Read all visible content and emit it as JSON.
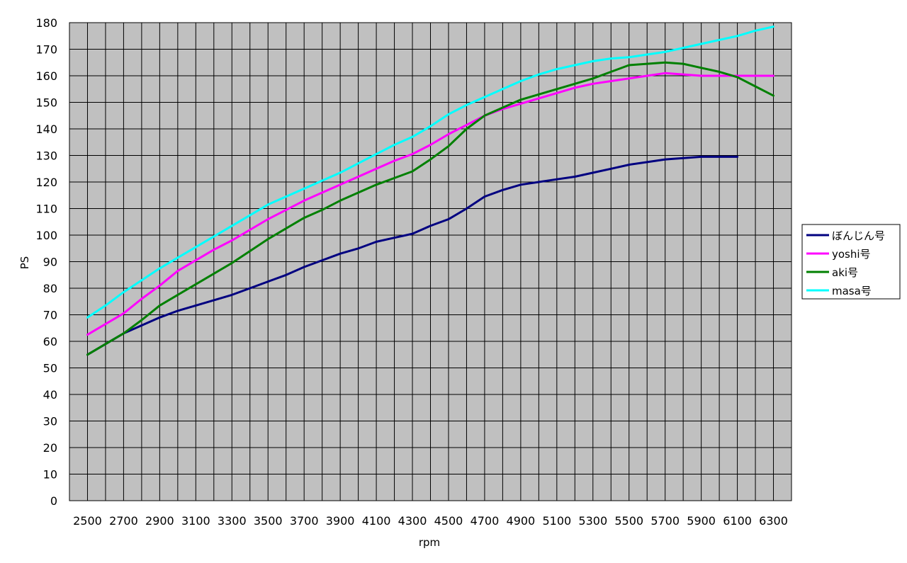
{
  "chart_data": {
    "type": "line",
    "title": "",
    "xlabel": "rpm",
    "ylabel": "PS",
    "ylim": [
      0,
      180
    ],
    "y_ticks": [
      0,
      10,
      20,
      30,
      40,
      50,
      60,
      70,
      80,
      90,
      100,
      110,
      120,
      130,
      140,
      150,
      160,
      170,
      180
    ],
    "x_tick_labels": [
      "2500",
      "2700",
      "2900",
      "3100",
      "3300",
      "3500",
      "3700",
      "3900",
      "4100",
      "4300",
      "4500",
      "4700",
      "4900",
      "5100",
      "5300",
      "5500",
      "5700",
      "5900",
      "6100",
      "6300"
    ],
    "x": [
      2500,
      2600,
      2700,
      2800,
      2900,
      3000,
      3100,
      3200,
      3300,
      3400,
      3500,
      3600,
      3700,
      3800,
      3900,
      4000,
      4100,
      4200,
      4300,
      4400,
      4500,
      4600,
      4700,
      4800,
      4900,
      5000,
      5100,
      5200,
      5300,
      5400,
      5500,
      5600,
      5700,
      5800,
      5900,
      6000,
      6100,
      6200,
      6300
    ],
    "grid": true,
    "plot_background": "#c0c0c0",
    "legend_position": "right",
    "series": [
      {
        "name": "ぼんじん号",
        "color": "#000080",
        "values": [
          55,
          59,
          63,
          66,
          69,
          71.5,
          73.5,
          75.5,
          77.5,
          80,
          82.5,
          85,
          88,
          90.5,
          93,
          95,
          97.5,
          99,
          100.5,
          103.5,
          106,
          110,
          114.5,
          117,
          119,
          120,
          121,
          122,
          123.5,
          125,
          126.5,
          127.5,
          128.5,
          129,
          129.5,
          129.5,
          129.5,
          null,
          null
        ]
      },
      {
        "name": "yoshi号",
        "color": "#ff00ff",
        "values": [
          62.5,
          66.5,
          70.5,
          76,
          81,
          86.5,
          90.5,
          94.5,
          98,
          102,
          106,
          109.5,
          113,
          116,
          119,
          122,
          125,
          128,
          130.5,
          134,
          138,
          141.5,
          145,
          147.5,
          149.5,
          151.5,
          153.5,
          155.5,
          157,
          158,
          159,
          160,
          161,
          160.5,
          160,
          160,
          160,
          160,
          160
        ]
      },
      {
        "name": "aki号",
        "color": "#008000",
        "values": [
          55,
          59,
          63,
          68,
          73.5,
          77.5,
          81.5,
          85.5,
          89.5,
          94,
          98.5,
          102.5,
          106.5,
          109.5,
          113,
          116,
          119,
          121.5,
          124,
          128.5,
          133.5,
          140,
          145,
          148,
          151,
          153,
          155,
          157,
          159,
          161.5,
          164,
          164.5,
          165,
          164.5,
          163,
          161.5,
          159.5,
          156,
          152.5
        ]
      },
      {
        "name": "masa号",
        "color": "#00ffff",
        "values": [
          69,
          73.5,
          78.5,
          83,
          87.5,
          91.5,
          95.5,
          99.5,
          103.5,
          107.5,
          111.5,
          114.5,
          117.5,
          120.5,
          123.5,
          127,
          130.5,
          134,
          137,
          141,
          145.5,
          149,
          152,
          155,
          158,
          160.5,
          162.5,
          164,
          165.5,
          166.5,
          167,
          168,
          169,
          170.5,
          172,
          173.5,
          175,
          177,
          178.5
        ]
      }
    ]
  }
}
